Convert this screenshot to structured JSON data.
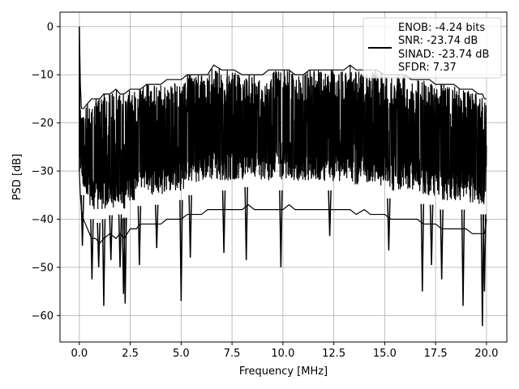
{
  "chart_data": {
    "type": "line",
    "xlabel": "Frequency [MHz]",
    "ylabel": "PSD [dB]",
    "xlim": [
      -0.95,
      21.0
    ],
    "ylim": [
      -65.5,
      3.0
    ],
    "grid": true,
    "legend_position": "top-right",
    "x_ticks": [
      0.0,
      2.5,
      5.0,
      7.5,
      10.0,
      12.5,
      15.0,
      17.5,
      20.0
    ],
    "x_tick_labels": [
      "0.0",
      "2.5",
      "5.0",
      "7.5",
      "10.0",
      "12.5",
      "15.0",
      "17.5",
      "20.0"
    ],
    "y_ticks": [
      0,
      -10,
      -20,
      -30,
      -40,
      -50,
      -60
    ],
    "y_tick_labels": [
      "0",
      "−10",
      "−20",
      "−30",
      "−40",
      "−50",
      "−60"
    ],
    "series": [
      {
        "name": "ENOB: -4.24 bits\nSNR: -23.74 dB\nSINAD: -23.74 dB\nSFDR: 7.37",
        "legend_lines": [
          "ENOB: -4.24 bits",
          "SNR: -23.74 dB",
          "SINAD: -23.74 dB",
          "SFDR: 7.37"
        ],
        "color": "#000000",
        "x": [
          0.0,
          0.05,
          0.1,
          0.2,
          0.4,
          0.6,
          0.8,
          1.0,
          1.2,
          1.5,
          1.8,
          2.0,
          2.2,
          2.5,
          2.8,
          3.0,
          3.3,
          3.6,
          4.0,
          4.3,
          4.6,
          5.0,
          5.3,
          5.6,
          6.0,
          6.3,
          6.6,
          7.0,
          7.3,
          7.6,
          8.0,
          8.3,
          8.6,
          9.0,
          9.3,
          9.6,
          10.0,
          10.3,
          10.6,
          11.0,
          11.3,
          11.6,
          12.0,
          12.3,
          12.6,
          13.0,
          13.3,
          13.6,
          14.0,
          14.3,
          14.6,
          15.0,
          15.3,
          15.6,
          16.0,
          16.3,
          16.6,
          16.9,
          17.2,
          17.5,
          17.8,
          18.1,
          18.4,
          18.7,
          19.0,
          19.3,
          19.6,
          19.8,
          19.9,
          20.0
        ],
        "upper_envelope": [
          0,
          -12,
          -17,
          -17,
          -16,
          -15,
          -15,
          -15,
          -14,
          -14,
          -13,
          -14,
          -14,
          -13,
          -13,
          -13,
          -12,
          -12,
          -12,
          -11,
          -11,
          -11,
          -10,
          -10,
          -10,
          -10,
          -8,
          -9,
          -9,
          -9,
          -10,
          -10,
          -10,
          -10,
          -9,
          -9,
          -9,
          -9,
          -10,
          -10,
          -9,
          -9,
          -9,
          -9,
          -9,
          -9,
          -8,
          -9,
          -9,
          -9,
          -9,
          -10,
          -10,
          -10,
          -10,
          -11,
          -11,
          -11,
          -11,
          -12,
          -12,
          -12,
          -12,
          -13,
          -13,
          -13,
          -14,
          -14,
          -15,
          -15
        ],
        "lower_envelope": [
          -30,
          -35,
          -38,
          -40,
          -42,
          -44,
          -44,
          -45,
          -44,
          -43,
          -44,
          -43,
          -44,
          -42,
          -42,
          -41,
          -41,
          -41,
          -41,
          -40,
          -40,
          -40,
          -39,
          -39,
          -39,
          -38,
          -38,
          -38,
          -38,
          -38,
          -38,
          -37,
          -38,
          -38,
          -38,
          -38,
          -38,
          -37,
          -38,
          -38,
          -38,
          -38,
          -38,
          -38,
          -38,
          -38,
          -38,
          -39,
          -38,
          -39,
          -39,
          -39,
          -40,
          -40,
          -40,
          -40,
          -40,
          -41,
          -41,
          -41,
          -42,
          -42,
          -42,
          -42,
          -42,
          -43,
          -43,
          -43,
          -43,
          -40
        ],
        "deep_dips": [
          {
            "x": 0.15,
            "y": -45.5
          },
          {
            "x": 0.62,
            "y": -52.5
          },
          {
            "x": 0.95,
            "y": -50.0
          },
          {
            "x": 1.2,
            "y": -58.0
          },
          {
            "x": 1.55,
            "y": -48.5
          },
          {
            "x": 2.0,
            "y": -50.0
          },
          {
            "x": 2.17,
            "y": -55.5
          },
          {
            "x": 2.25,
            "y": -57.5
          },
          {
            "x": 2.95,
            "y": -49.5
          },
          {
            "x": 3.8,
            "y": -46.0
          },
          {
            "x": 5.0,
            "y": -57.0
          },
          {
            "x": 5.45,
            "y": -48.0
          },
          {
            "x": 7.1,
            "y": -47.0
          },
          {
            "x": 8.2,
            "y": -48.5
          },
          {
            "x": 9.9,
            "y": -50.0
          },
          {
            "x": 12.3,
            "y": -43.5
          },
          {
            "x": 15.2,
            "y": -46.5
          },
          {
            "x": 16.85,
            "y": -55.0
          },
          {
            "x": 17.3,
            "y": -49.5
          },
          {
            "x": 17.8,
            "y": -52.5
          },
          {
            "x": 18.85,
            "y": -58.0
          },
          {
            "x": 19.8,
            "y": -62.2
          },
          {
            "x": 19.9,
            "y": -55.0
          }
        ],
        "peak": {
          "x": 0.0,
          "y": 0.0
        }
      }
    ]
  }
}
